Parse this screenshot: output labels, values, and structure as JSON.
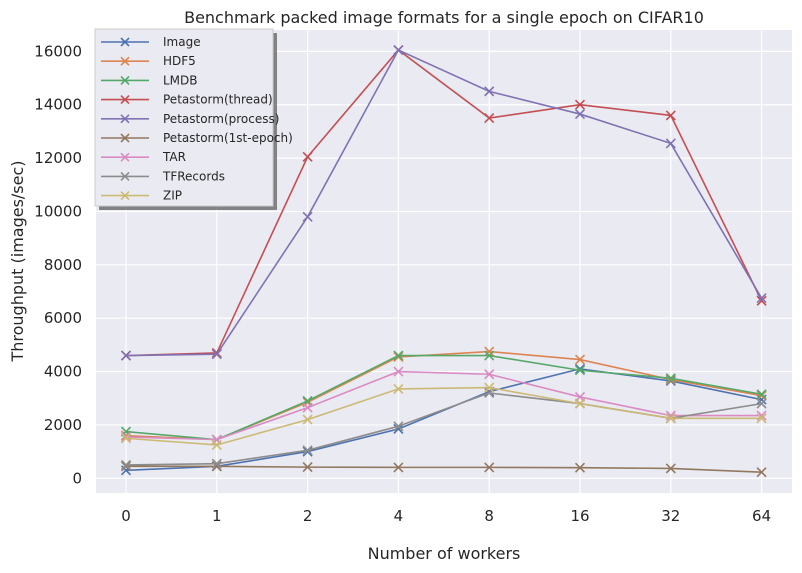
{
  "chart_data": {
    "type": "line",
    "title": "Benchmark packed image formats for a single epoch on CIFAR10",
    "xlabel": "Number of workers",
    "ylabel": "Throughput (images/sec)",
    "categories": [
      "0",
      "1",
      "2",
      "4",
      "8",
      "16",
      "32",
      "64"
    ],
    "yticks": [
      0,
      2000,
      4000,
      6000,
      8000,
      10000,
      12000,
      14000,
      16000
    ],
    "ylim": [
      -550,
      16800
    ],
    "grid": true,
    "legend_position": "top-left",
    "marker": "x",
    "series": [
      {
        "name": "Image",
        "color": "#4c72b0",
        "values": [
          300,
          450,
          1000,
          1850,
          3250,
          4100,
          3650,
          2950
        ]
      },
      {
        "name": "HDF5",
        "color": "#dd8452",
        "values": [
          1600,
          1450,
          2850,
          4550,
          4750,
          4450,
          3700,
          3100
        ]
      },
      {
        "name": "LMDB",
        "color": "#55a868",
        "values": [
          1750,
          1450,
          2900,
          4600,
          4600,
          4050,
          3750,
          3150
        ]
      },
      {
        "name": "Petastorm(thread)",
        "color": "#c44e52",
        "values": [
          4600,
          4700,
          12050,
          16050,
          13500,
          14000,
          13600,
          6650
        ]
      },
      {
        "name": "Petastorm(process)",
        "color": "#8172b3",
        "values": [
          4600,
          4650,
          9800,
          16050,
          14500,
          13650,
          12550,
          6750
        ]
      },
      {
        "name": "Petastorm(1st-epoch)",
        "color": "#937860",
        "values": [
          450,
          450,
          420,
          410,
          410,
          400,
          370,
          230
        ]
      },
      {
        "name": "TAR",
        "color": "#da8bc3",
        "values": [
          1550,
          1450,
          2650,
          4000,
          3900,
          3050,
          2350,
          2350
        ]
      },
      {
        "name": "TFRecords",
        "color": "#8c8c8c",
        "values": [
          500,
          550,
          1050,
          1950,
          3200,
          2800,
          2250,
          2800
        ]
      },
      {
        "name": "ZIP",
        "color": "#ccb974",
        "values": [
          1500,
          1250,
          2200,
          3350,
          3400,
          2800,
          2250,
          2250
        ]
      }
    ]
  }
}
